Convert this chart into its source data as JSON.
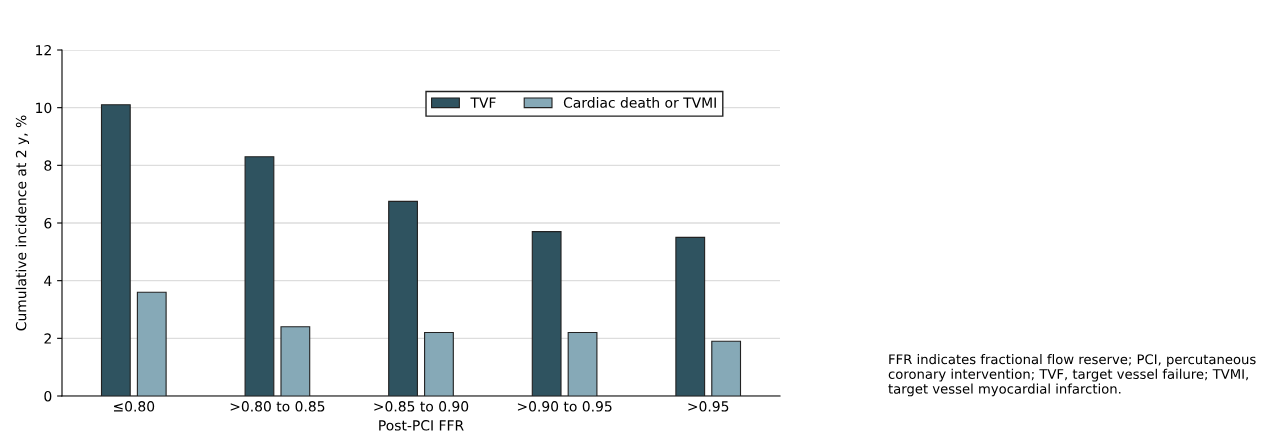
{
  "chart_data": {
    "type": "bar",
    "xlabel": "Post-PCI FFR",
    "ylabel": "Cumulative incidence at 2 y, %",
    "categories": [
      "≤0.80",
      ">0.80 to 0.85",
      ">0.85 to 0.90",
      ">0.90 to 0.95",
      ">0.95"
    ],
    "series": [
      {
        "name": "TVF",
        "color": "#2f5360",
        "values": [
          10.1,
          8.3,
          6.75,
          5.7,
          5.5
        ]
      },
      {
        "name": "Cardiac death or TVMI",
        "color": "#86a9b7",
        "values": [
          3.6,
          2.4,
          2.2,
          2.2,
          1.9
        ]
      }
    ],
    "ylim": [
      0,
      12
    ],
    "yticks": [
      0,
      2,
      4,
      6,
      8,
      10,
      12
    ],
    "grid": "y",
    "legend": "top right",
    "annotations": [
      "FFR indicates fractional flow reserve; PCI, percutaneous coronary intervention; TVF, target vessel failure; TVMI, target vessel myocardial infarction."
    ]
  }
}
